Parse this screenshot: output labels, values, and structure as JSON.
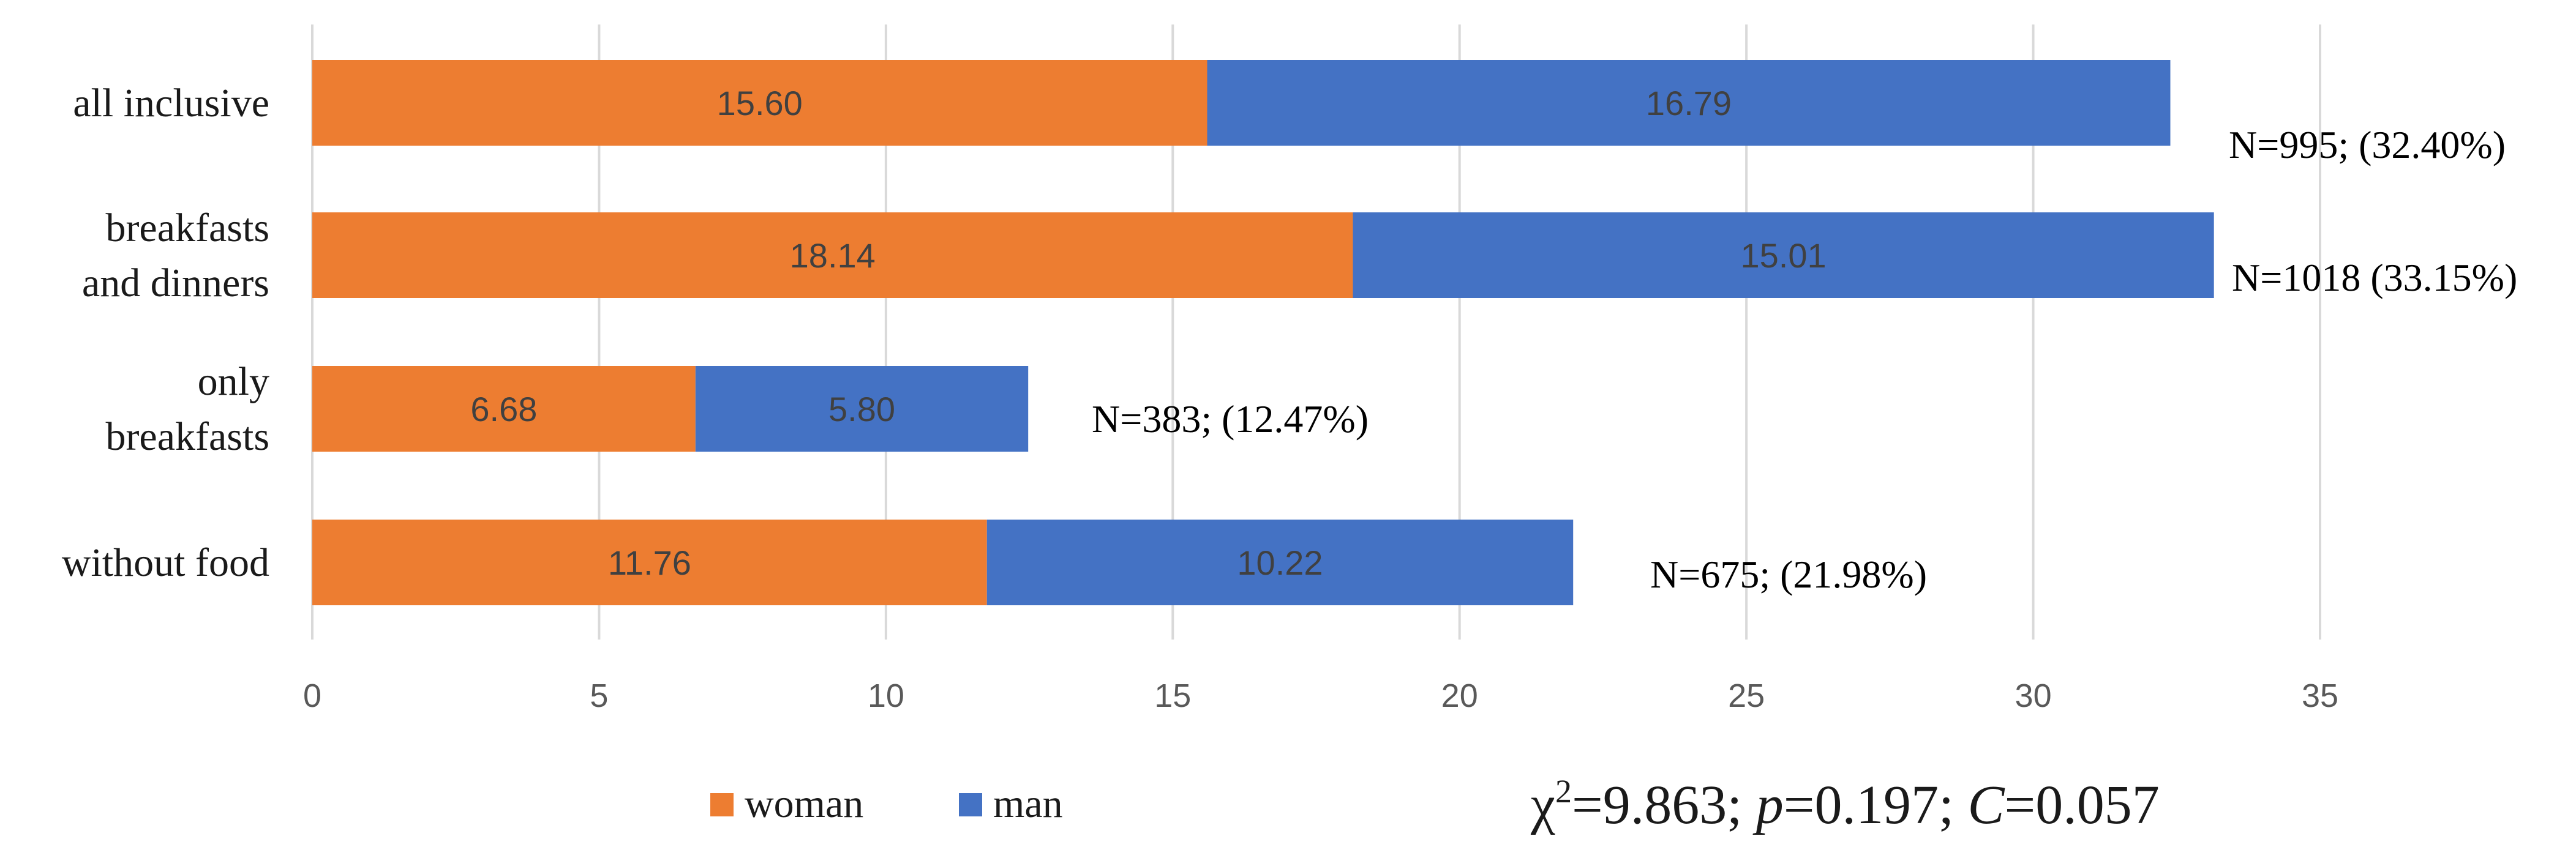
{
  "chart_data": {
    "type": "bar",
    "orientation": "horizontal",
    "stacked": true,
    "categories": [
      "all inclusive",
      "breakfasts and dinners",
      "only breakfasts",
      "without food"
    ],
    "category_lines": [
      [
        "all inclusive"
      ],
      [
        "breakfasts",
        "and dinners"
      ],
      [
        "only",
        "breakfasts"
      ],
      [
        "without food"
      ]
    ],
    "series": [
      {
        "name": "woman",
        "color": "#ED7D31",
        "values": [
          15.6,
          18.14,
          6.68,
          11.76
        ]
      },
      {
        "name": "man",
        "color": "#4472C4",
        "values": [
          16.79,
          15.01,
          5.8,
          10.22
        ]
      }
    ],
    "value_labels": [
      [
        "15.60",
        "18.14",
        "6.68",
        "11.76"
      ],
      [
        "16.79",
        "15.01",
        "5.80",
        "10.22"
      ]
    ],
    "annotations": [
      "N=995; (32.40%)",
      "N=1018 (33.15%)",
      "N=383; (12.47%)",
      "N=675; (21.98%)"
    ],
    "xlim": [
      0,
      35
    ],
    "xticks": [
      0,
      5,
      10,
      15,
      20,
      25,
      30,
      35
    ],
    "grid": true,
    "legend": {
      "position": "bottom-left",
      "entries": [
        "woman",
        "man"
      ]
    },
    "stats_text": {
      "chi": "χ",
      "sup": "2",
      "chi_value": "=9.863; ",
      "p": "p",
      "p_value": "=0.197; ",
      "c": "C",
      "c_value": "=0.057"
    }
  }
}
